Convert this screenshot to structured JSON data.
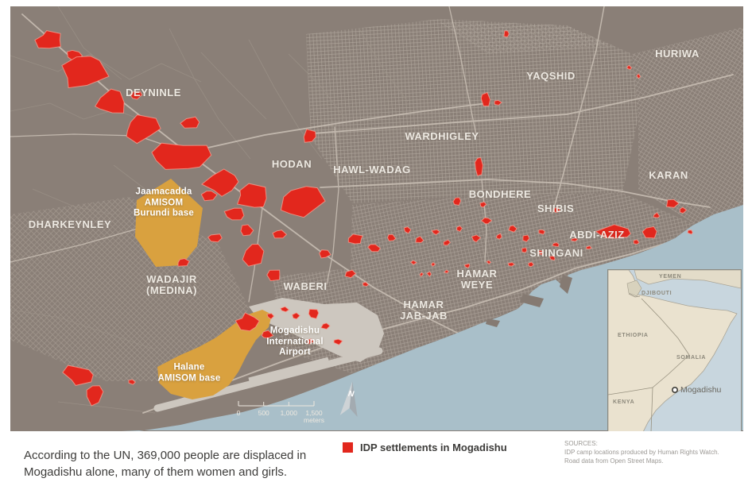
{
  "map": {
    "districts": [
      {
        "name": "DEYNINLE"
      },
      {
        "name": "HURIWA"
      },
      {
        "name": "YAQSHID"
      },
      {
        "name": "WARDHIGLEY"
      },
      {
        "name": "HODAN"
      },
      {
        "name": "HAWL-WADAG"
      },
      {
        "name": "BONDHERE"
      },
      {
        "name": "SHIBIS"
      },
      {
        "name": "KARAN"
      },
      {
        "name": "ABDI-AZIZ"
      },
      {
        "name": "SHINGANI"
      },
      {
        "name": "DHARKEYNLEY"
      },
      {
        "name": "WADAJIR\n(MEDINA)"
      },
      {
        "name": "WABERI"
      },
      {
        "name": "HAMAR\nWEYE"
      },
      {
        "name": "HAMAR\nJAB-JAB"
      }
    ],
    "sites": [
      {
        "name": "Jaamacadda\nAMISOM\nBurundi base"
      },
      {
        "name": "Halane\nAMISOM base"
      },
      {
        "name": "Mogadishu\nInternational\nAirport"
      }
    ],
    "scale_bar": {
      "ticks": [
        "0",
        "500",
        "1,000",
        "1,500"
      ],
      "unit": "meters"
    },
    "north_label": "N"
  },
  "inset": {
    "countries": [
      "YEMEN",
      "DJIBOUTI",
      "ETHIOPIA",
      "SOMALIA",
      "KENYA"
    ],
    "city": "Mogadishu"
  },
  "caption": "According to the UN, 369,000 people are displaced in Mogadishu alone, many of them women and girls.",
  "legend": {
    "label": "IDP settlements in Mogadishu"
  },
  "sources": {
    "heading": "SOURCES:",
    "lines": [
      "IDP camp locations produced by Human Rights Watch.",
      "Road data from Open Street Maps."
    ]
  },
  "colors": {
    "idp_red": "#e2271d",
    "idp_red_stroke": "#f59c8f",
    "amisom_orange": "#d9a13f",
    "map_base": "#8a7f77",
    "road": "#c8beb3",
    "water": "#a9bfc9",
    "airport_gray": "#cdc7bf",
    "inset_land": "#eae2cf",
    "inset_water": "#c8d6de",
    "label_white": "#f2eee7",
    "caption_text": "#3d3c3a",
    "sources_text": "#9b9894"
  }
}
